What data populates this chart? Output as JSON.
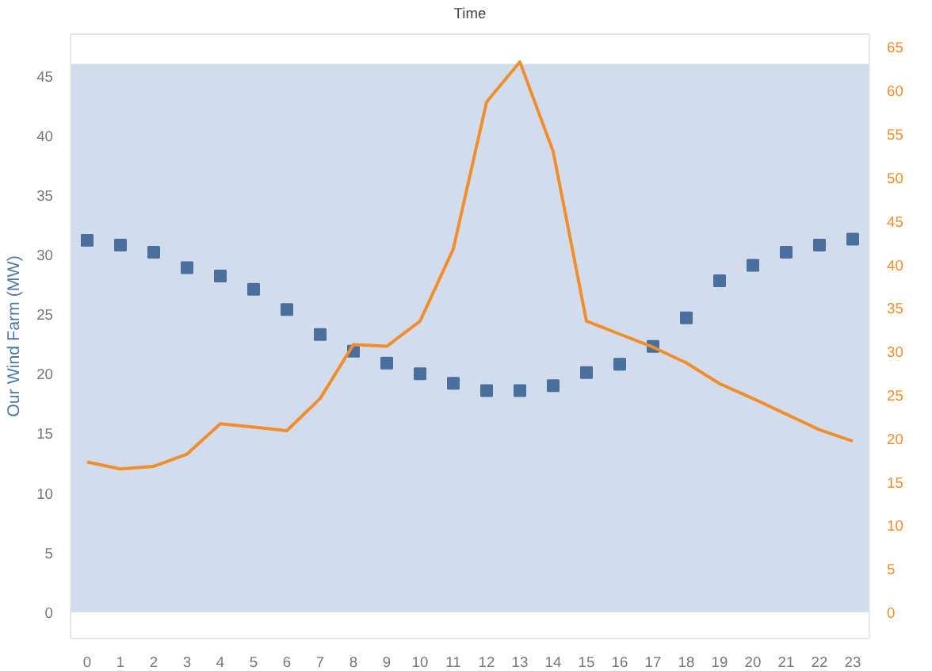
{
  "chart_data": {
    "type": "scatter",
    "xlabel": "Time",
    "ylabel": "Our Wind Farm (MW)",
    "x": [
      0,
      1,
      2,
      3,
      4,
      5,
      6,
      7,
      8,
      9,
      10,
      11,
      12,
      13,
      14,
      15,
      16,
      17,
      18,
      19,
      20,
      21,
      22,
      23
    ],
    "xlim": [
      -0.5,
      23.5
    ],
    "xticks": [
      0,
      1,
      2,
      3,
      4,
      5,
      6,
      7,
      8,
      9,
      10,
      11,
      12,
      13,
      14,
      15,
      16,
      17,
      18,
      19,
      20,
      21,
      22,
      23
    ],
    "ylim": [
      -2.2,
      48.5
    ],
    "yticks": [
      0,
      5,
      10,
      15,
      20,
      25,
      30,
      35,
      40,
      45
    ],
    "y2lim": [
      -3,
      66.5
    ],
    "y2ticks": [
      0,
      5,
      10,
      15,
      20,
      25,
      30,
      35,
      40,
      45,
      50,
      55,
      60,
      65
    ],
    "grid": false,
    "bands": [
      {
        "axis": "y",
        "from": 0,
        "to": 46,
        "color": "#c6d5e8"
      }
    ],
    "series": [
      {
        "color": "#4a6f9c",
        "marker": "square",
        "values": [
          31.2,
          30.8,
          30.2,
          28.9,
          28.2,
          27.1,
          25.4,
          23.3,
          21.9,
          20.9,
          20.0,
          19.2,
          18.6,
          18.6,
          19.0,
          20.1,
          20.8,
          22.3,
          24.7,
          27.8,
          29.1,
          30.2,
          30.8,
          31.3
        ]
      },
      {
        "type": "line",
        "axis": "y2",
        "color": "#f28e2b",
        "values": [
          17.3,
          16.5,
          16.8,
          18.2,
          21.7,
          21.3,
          20.9,
          24.6,
          30.8,
          30.6,
          33.5,
          41.8,
          58.7,
          63.3,
          53.0,
          33.5,
          32.0,
          30.5,
          28.7,
          26.3,
          24.6,
          22.8,
          21.0,
          19.7
        ]
      }
    ]
  }
}
